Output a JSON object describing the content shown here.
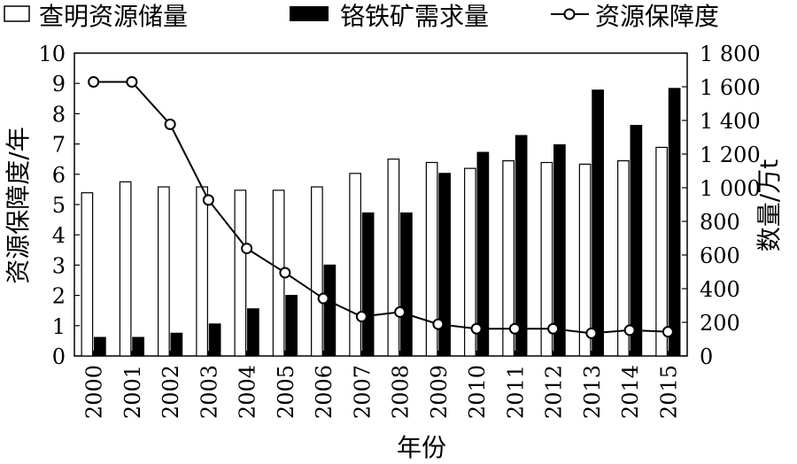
{
  "chart_data": {
    "type": "bar+line",
    "categories": [
      "2000",
      "2001",
      "2002",
      "2003",
      "2004",
      "2005",
      "2006",
      "2007",
      "2008",
      "2009",
      "2010",
      "2011",
      "2012",
      "2013",
      "2014",
      "2015"
    ],
    "series": [
      {
        "name": "查明资源储量",
        "type": "bar",
        "style": "hollow",
        "axis": "right",
        "values": [
          970,
          1035,
          1005,
          1005,
          985,
          985,
          1005,
          1085,
          1170,
          1150,
          1115,
          1160,
          1150,
          1140,
          1160,
          1240
        ]
      },
      {
        "name": "铬铁矿需求量",
        "type": "bar",
        "style": "solid",
        "axis": "right",
        "values": [
          110,
          110,
          135,
          190,
          280,
          360,
          540,
          850,
          850,
          1085,
          1210,
          1310,
          1255,
          1580,
          1370,
          1590
        ]
      },
      {
        "name": "资源保障度",
        "type": "line",
        "marker": "circle-open",
        "axis": "left",
        "values": [
          9.05,
          9.05,
          7.65,
          5.15,
          3.55,
          2.75,
          1.9,
          1.3,
          1.45,
          1.05,
          0.9,
          0.9,
          0.9,
          0.75,
          0.85,
          0.8
        ]
      }
    ],
    "xlabel": "年份",
    "ylabel_left": "资源保障度/年",
    "ylabel_right": "数量/万t",
    "ylim_left": [
      0,
      10
    ],
    "yticks_left": [
      "0",
      "1",
      "2",
      "3",
      "4",
      "5",
      "6",
      "7",
      "8",
      "9",
      "10"
    ],
    "ylim_right": [
      0,
      1800
    ],
    "yticks_right": [
      "0",
      "200",
      "400",
      "600",
      "800",
      "1 000",
      "1 200",
      "1 400",
      "1 600",
      "1 800"
    ],
    "grid": false,
    "legend_position": "top"
  }
}
